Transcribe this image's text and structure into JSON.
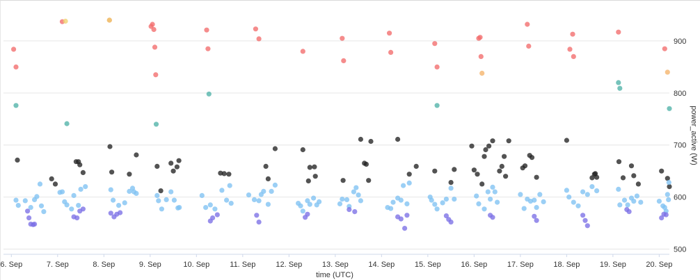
{
  "chart_data": {
    "type": "scatter",
    "title": "",
    "xlabel": "time (UTC)",
    "ylabel": "power_active (W)",
    "x_ticks": [
      "6. Sep",
      "7. Sep",
      "8. Sep",
      "9. Sep",
      "10. Sep",
      "11. Sep",
      "12. Sep",
      "13. Sep",
      "14. Sep",
      "15. Sep",
      "16. Sep",
      "17. Sep",
      "18. Sep",
      "19. Sep",
      "20. Sep"
    ],
    "y_ticks": [
      500,
      600,
      700,
      800,
      900
    ],
    "xlim": [
      5.83,
      20.22
    ],
    "ylim": [
      490,
      960
    ],
    "grid": "horizontal",
    "colors": {
      "red": "#f26b6b",
      "orange": "#f5b36a",
      "yellow": "#f0d270",
      "teal": "#4fb2a8",
      "black": "#222222",
      "lightblue": "#7fc1f2",
      "purple": "#7b6fe6",
      "grid": "#e6e6e6",
      "axis": "#cfd8ea"
    },
    "series": [
      {
        "color": "red",
        "points": [
          [
            6.05,
            884
          ],
          [
            6.1,
            850
          ],
          [
            7.1,
            937
          ],
          [
            8.12,
            940
          ],
          [
            9.02,
            928
          ],
          [
            9.05,
            932
          ],
          [
            9.08,
            922
          ],
          [
            9.1,
            888
          ],
          [
            9.12,
            835
          ],
          [
            10.22,
            921
          ],
          [
            10.25,
            885
          ],
          [
            11.28,
            923
          ],
          [
            11.35,
            904
          ],
          [
            12.3,
            880
          ],
          [
            13.15,
            905
          ],
          [
            13.18,
            862
          ],
          [
            14.17,
            915
          ],
          [
            14.2,
            878
          ],
          [
            15.15,
            895
          ],
          [
            15.2,
            850
          ],
          [
            16.1,
            905
          ],
          [
            16.13,
            907
          ],
          [
            16.15,
            870
          ],
          [
            17.15,
            932
          ],
          [
            17.18,
            890
          ],
          [
            18.07,
            884
          ],
          [
            18.13,
            913
          ],
          [
            18.15,
            870
          ],
          [
            19.12,
            917
          ],
          [
            20.12,
            885
          ]
        ]
      },
      {
        "color": "orange",
        "points": [
          [
            16.17,
            838
          ],
          [
            20.18,
            840
          ]
        ]
      },
      {
        "color": "yellow",
        "points": [
          [
            7.17,
            938
          ],
          [
            8.12,
            940
          ]
        ]
      },
      {
        "color": "teal",
        "points": [
          [
            6.1,
            776
          ],
          [
            7.2,
            741
          ],
          [
            9.13,
            740
          ],
          [
            10.27,
            798
          ],
          [
            15.2,
            776
          ],
          [
            19.12,
            820
          ],
          [
            19.15,
            809
          ],
          [
            20.22,
            770
          ]
        ]
      },
      {
        "color": "black",
        "points": [
          [
            6.13,
            671
          ],
          [
            6.87,
            635
          ],
          [
            6.95,
            625
          ],
          [
            7.4,
            668
          ],
          [
            7.45,
            668
          ],
          [
            7.48,
            662
          ],
          [
            7.55,
            647
          ],
          [
            8.13,
            697
          ],
          [
            8.17,
            648
          ],
          [
            8.55,
            644
          ],
          [
            8.7,
            681
          ],
          [
            9.15,
            659
          ],
          [
            9.23,
            612
          ],
          [
            9.45,
            665
          ],
          [
            9.5,
            650
          ],
          [
            9.58,
            658
          ],
          [
            9.62,
            670
          ],
          [
            10.52,
            646
          ],
          [
            10.6,
            645
          ],
          [
            10.7,
            644
          ],
          [
            11.5,
            659
          ],
          [
            11.55,
            635
          ],
          [
            11.7,
            693
          ],
          [
            12.3,
            691
          ],
          [
            12.42,
            631
          ],
          [
            12.45,
            657
          ],
          [
            12.55,
            658
          ],
          [
            12.57,
            640
          ],
          [
            13.17,
            632
          ],
          [
            13.55,
            711
          ],
          [
            13.63,
            665
          ],
          [
            13.67,
            663
          ],
          [
            13.72,
            632
          ],
          [
            13.77,
            707
          ],
          [
            14.35,
            711
          ],
          [
            14.6,
            644
          ],
          [
            14.75,
            659
          ],
          [
            15.15,
            650
          ],
          [
            15.5,
            628
          ],
          [
            15.57,
            653
          ],
          [
            15.95,
            698
          ],
          [
            16.0,
            652
          ],
          [
            16.07,
            644
          ],
          [
            16.17,
            625
          ],
          [
            16.22,
            678
          ],
          [
            16.25,
            691
          ],
          [
            16.32,
            698
          ],
          [
            16.4,
            708
          ],
          [
            16.55,
            650
          ],
          [
            16.6,
            659
          ],
          [
            16.65,
            678
          ],
          [
            16.68,
            640
          ],
          [
            16.75,
            708
          ],
          [
            17.05,
            656
          ],
          [
            17.1,
            660
          ],
          [
            17.2,
            680
          ],
          [
            17.25,
            676
          ],
          [
            17.35,
            638
          ],
          [
            18.0,
            709
          ],
          [
            18.55,
            637
          ],
          [
            18.6,
            644
          ],
          [
            18.62,
            645
          ],
          [
            18.65,
            638
          ],
          [
            19.13,
            668
          ],
          [
            19.22,
            637
          ],
          [
            19.4,
            660
          ],
          [
            19.45,
            641
          ],
          [
            19.55,
            625
          ],
          [
            20.05,
            650
          ],
          [
            20.18,
            636
          ],
          [
            20.22,
            620
          ]
        ]
      },
      {
        "color": "lightblue",
        "points": [
          [
            6.1,
            594
          ],
          [
            6.15,
            584
          ],
          [
            6.3,
            593
          ],
          [
            6.42,
            580
          ],
          [
            6.5,
            595
          ],
          [
            6.55,
            601
          ],
          [
            6.62,
            625
          ],
          [
            6.65,
            583
          ],
          [
            6.7,
            572
          ],
          [
            7.05,
            609
          ],
          [
            7.1,
            610
          ],
          [
            7.15,
            591
          ],
          [
            7.2,
            585
          ],
          [
            7.3,
            577
          ],
          [
            7.35,
            603
          ],
          [
            7.45,
            584
          ],
          [
            7.5,
            615
          ],
          [
            7.6,
            620
          ],
          [
            8.15,
            614
          ],
          [
            8.2,
            594
          ],
          [
            8.32,
            584
          ],
          [
            8.45,
            589
          ],
          [
            8.55,
            611
          ],
          [
            8.62,
            617
          ],
          [
            8.65,
            610
          ],
          [
            8.7,
            607
          ],
          [
            9.15,
            603
          ],
          [
            9.18,
            593
          ],
          [
            9.25,
            577
          ],
          [
            9.35,
            595
          ],
          [
            9.45,
            610
          ],
          [
            9.52,
            594
          ],
          [
            9.6,
            579
          ],
          [
            9.63,
            580
          ],
          [
            10.12,
            603
          ],
          [
            10.2,
            580
          ],
          [
            10.3,
            585
          ],
          [
            10.4,
            577
          ],
          [
            10.55,
            613
          ],
          [
            10.65,
            594
          ],
          [
            10.72,
            622
          ],
          [
            10.75,
            588
          ],
          [
            11.13,
            604
          ],
          [
            11.25,
            595
          ],
          [
            11.35,
            593
          ],
          [
            11.4,
            605
          ],
          [
            11.45,
            611
          ],
          [
            11.55,
            586
          ],
          [
            11.62,
            611
          ],
          [
            11.7,
            623
          ],
          [
            12.2,
            588
          ],
          [
            12.25,
            583
          ],
          [
            12.3,
            573
          ],
          [
            12.4,
            593
          ],
          [
            12.45,
            586
          ],
          [
            12.53,
            598
          ],
          [
            12.6,
            585
          ],
          [
            12.65,
            591
          ],
          [
            13.1,
            587
          ],
          [
            13.15,
            596
          ],
          [
            13.25,
            595
          ],
          [
            13.3,
            582
          ],
          [
            13.4,
            610
          ],
          [
            13.45,
            618
          ],
          [
            13.5,
            604
          ],
          [
            13.55,
            593
          ],
          [
            14.13,
            580
          ],
          [
            14.2,
            578
          ],
          [
            14.25,
            590
          ],
          [
            14.35,
            598
          ],
          [
            14.42,
            594
          ],
          [
            14.47,
            622
          ],
          [
            14.55,
            587
          ],
          [
            14.6,
            627
          ],
          [
            15.05,
            600
          ],
          [
            15.08,
            594
          ],
          [
            15.15,
            586
          ],
          [
            15.2,
            577
          ],
          [
            15.32,
            589
          ],
          [
            15.4,
            596
          ],
          [
            15.5,
            617
          ],
          [
            15.57,
            596
          ],
          [
            16.05,
            602
          ],
          [
            16.1,
            587
          ],
          [
            16.22,
            577
          ],
          [
            16.3,
            610
          ],
          [
            16.35,
            596
          ],
          [
            16.4,
            619
          ],
          [
            16.45,
            610
          ],
          [
            16.5,
            590
          ],
          [
            17.0,
            605
          ],
          [
            17.08,
            578
          ],
          [
            17.15,
            596
          ],
          [
            17.22,
            592
          ],
          [
            17.3,
            594
          ],
          [
            17.35,
            580
          ],
          [
            17.42,
            605
          ],
          [
            17.5,
            591
          ],
          [
            18.0,
            613
          ],
          [
            18.05,
            600
          ],
          [
            18.15,
            590
          ],
          [
            18.25,
            583
          ],
          [
            18.35,
            610
          ],
          [
            18.45,
            605
          ],
          [
            18.55,
            620
          ],
          [
            18.65,
            612
          ],
          [
            19.12,
            615
          ],
          [
            19.15,
            585
          ],
          [
            19.25,
            594
          ],
          [
            19.32,
            585
          ],
          [
            19.4,
            598
          ],
          [
            19.45,
            592
          ],
          [
            19.52,
            602
          ],
          [
            19.6,
            590
          ],
          [
            20.0,
            592
          ],
          [
            20.08,
            583
          ],
          [
            20.12,
            580
          ],
          [
            20.15,
            573
          ],
          [
            20.18,
            605
          ],
          [
            20.2,
            595
          ],
          [
            20.21,
            628
          ]
        ]
      },
      {
        "color": "purple",
        "points": [
          [
            6.35,
            573
          ],
          [
            6.38,
            560
          ],
          [
            6.42,
            548
          ],
          [
            6.47,
            547
          ],
          [
            6.5,
            548
          ],
          [
            7.35,
            562
          ],
          [
            7.42,
            560
          ],
          [
            7.48,
            573
          ],
          [
            7.55,
            577
          ],
          [
            8.15,
            569
          ],
          [
            8.22,
            562
          ],
          [
            8.28,
            567
          ],
          [
            8.35,
            570
          ],
          [
            10.3,
            554
          ],
          [
            10.35,
            560
          ],
          [
            10.45,
            566
          ],
          [
            11.3,
            565
          ],
          [
            11.35,
            552
          ],
          [
            12.35,
            561
          ],
          [
            12.4,
            567
          ],
          [
            13.3,
            576
          ],
          [
            13.42,
            572
          ],
          [
            14.35,
            562
          ],
          [
            14.42,
            558
          ],
          [
            14.5,
            540
          ],
          [
            14.55,
            565
          ],
          [
            15.4,
            564
          ],
          [
            15.45,
            557
          ],
          [
            15.5,
            552
          ],
          [
            16.35,
            565
          ],
          [
            16.4,
            561
          ],
          [
            17.3,
            563
          ],
          [
            17.35,
            555
          ],
          [
            18.35,
            565
          ],
          [
            18.4,
            555
          ],
          [
            18.45,
            545
          ],
          [
            19.3,
            576
          ],
          [
            19.35,
            572
          ],
          [
            20.05,
            560
          ],
          [
            20.1,
            567
          ],
          [
            20.15,
            566
          ]
        ]
      }
    ]
  }
}
